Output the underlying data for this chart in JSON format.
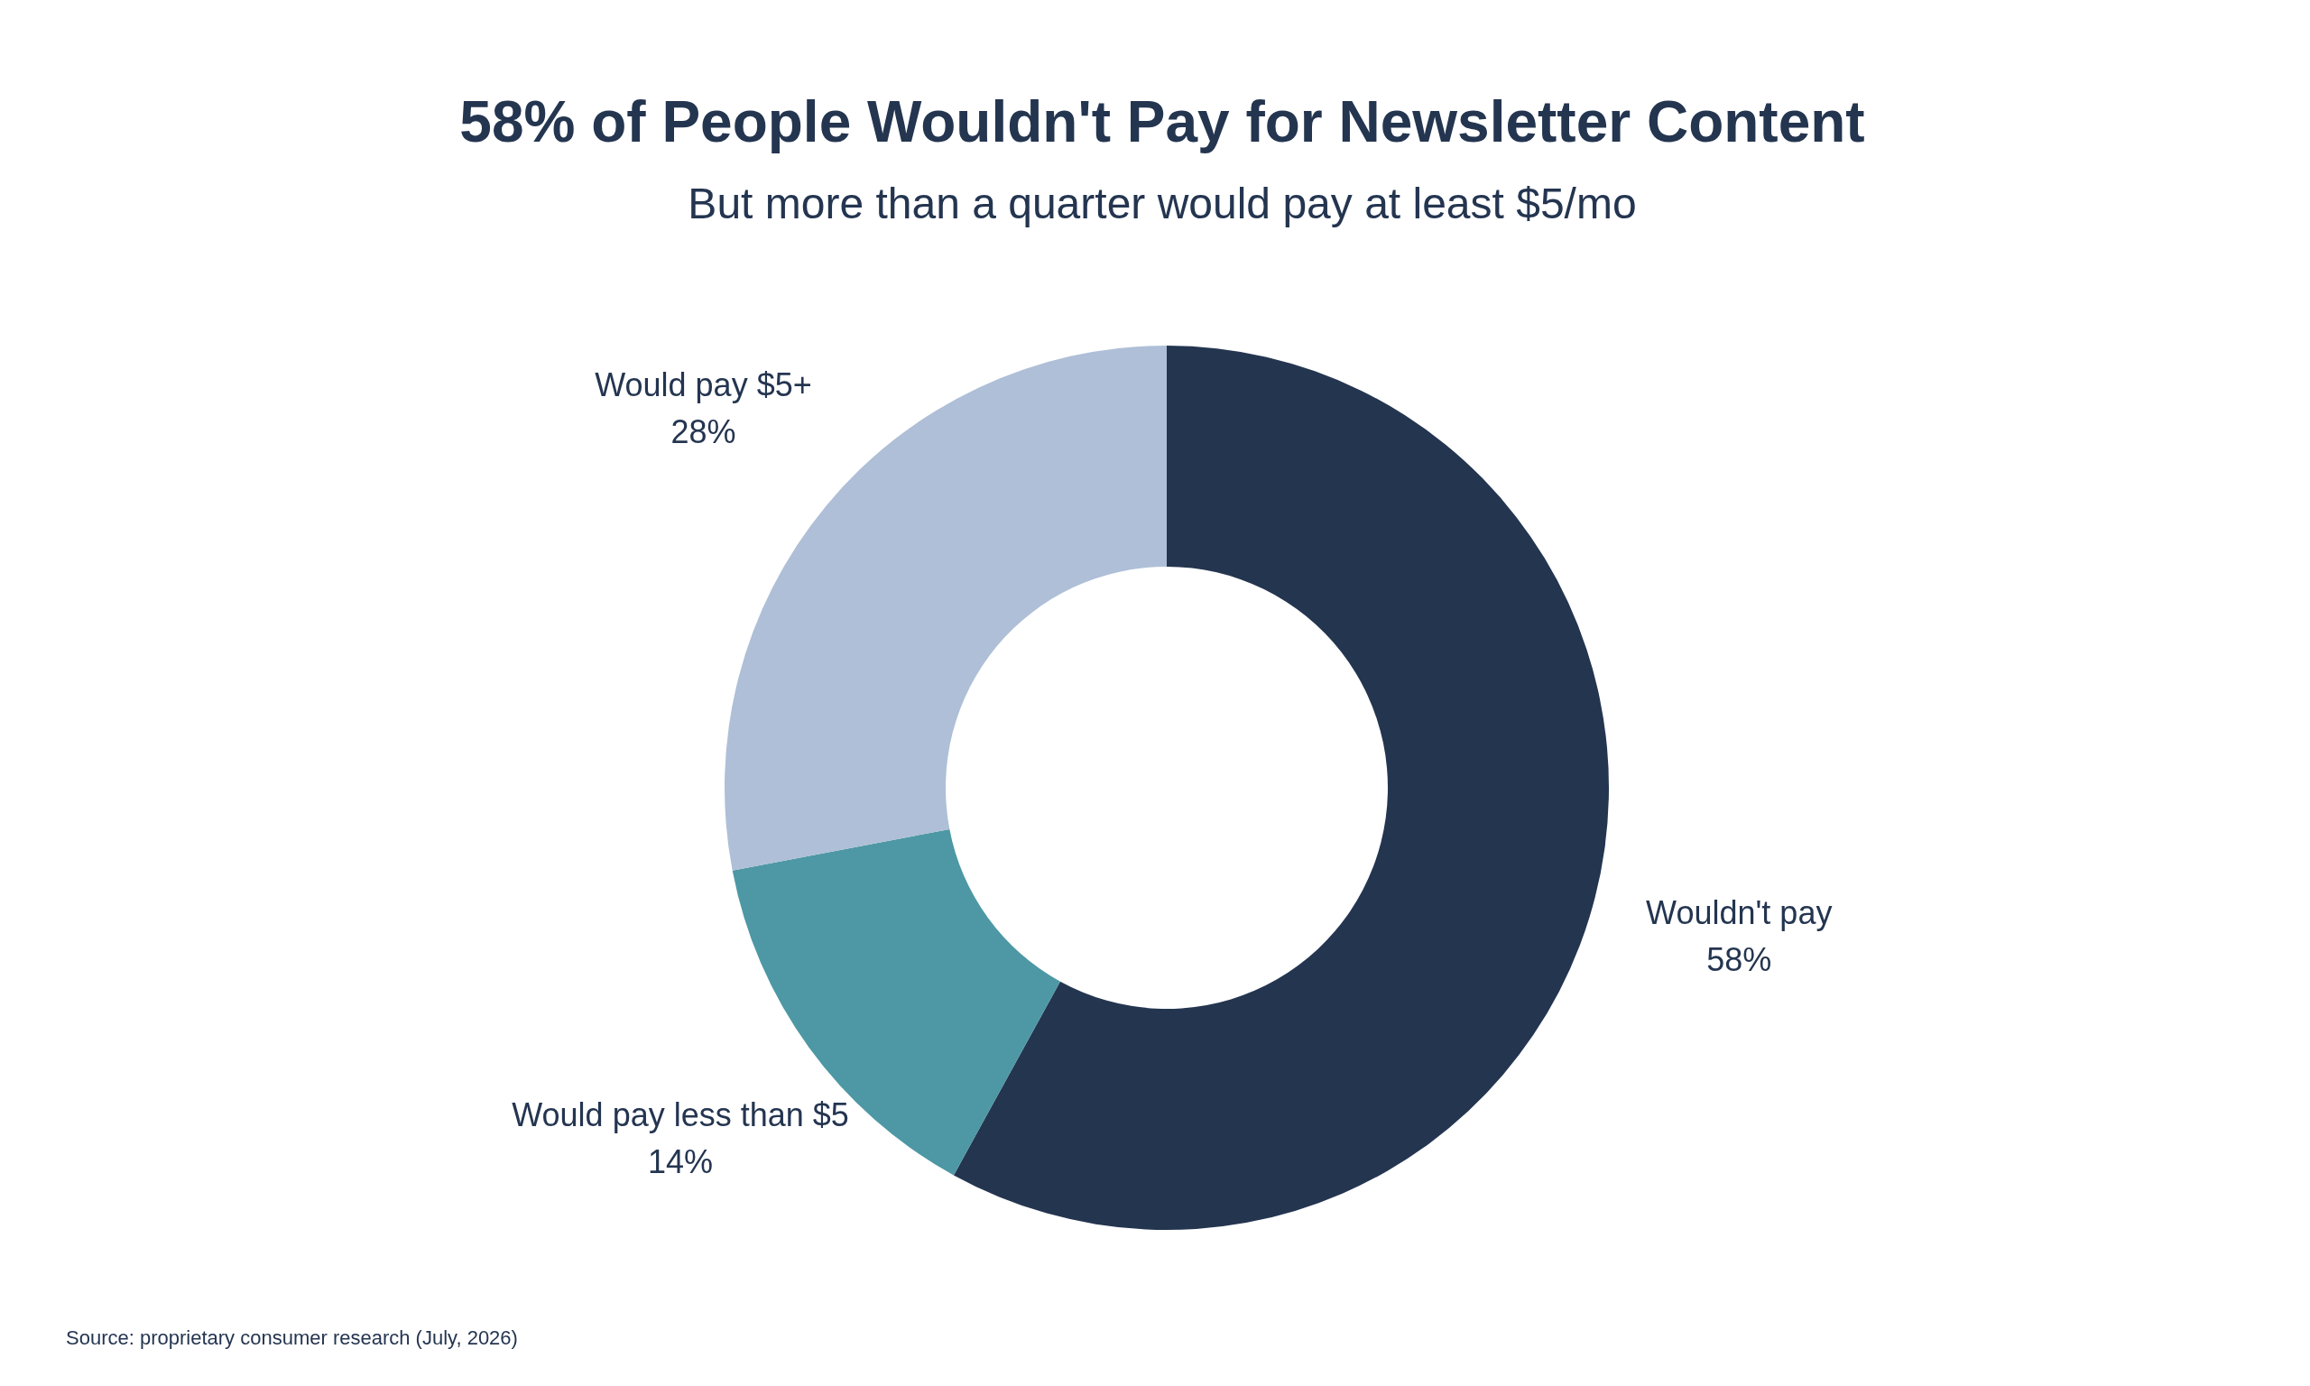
{
  "chart_data": {
    "type": "donut",
    "title": "58% of People Wouldn't Pay for Newsletter Content",
    "subtitle": "But more than a quarter would pay at least $5/mo",
    "categories": [
      "Wouldn't pay",
      "Would pay less than $5",
      "Would pay $5+"
    ],
    "values": [
      58,
      14,
      28
    ],
    "value_labels": [
      "58%",
      "14%",
      "28%"
    ],
    "colors": [
      "#243550",
      "#4d98a4",
      "#aebfd7"
    ],
    "legend": false,
    "annotations": [
      "Source: proprietary consumer research (July, 2026)"
    ]
  }
}
